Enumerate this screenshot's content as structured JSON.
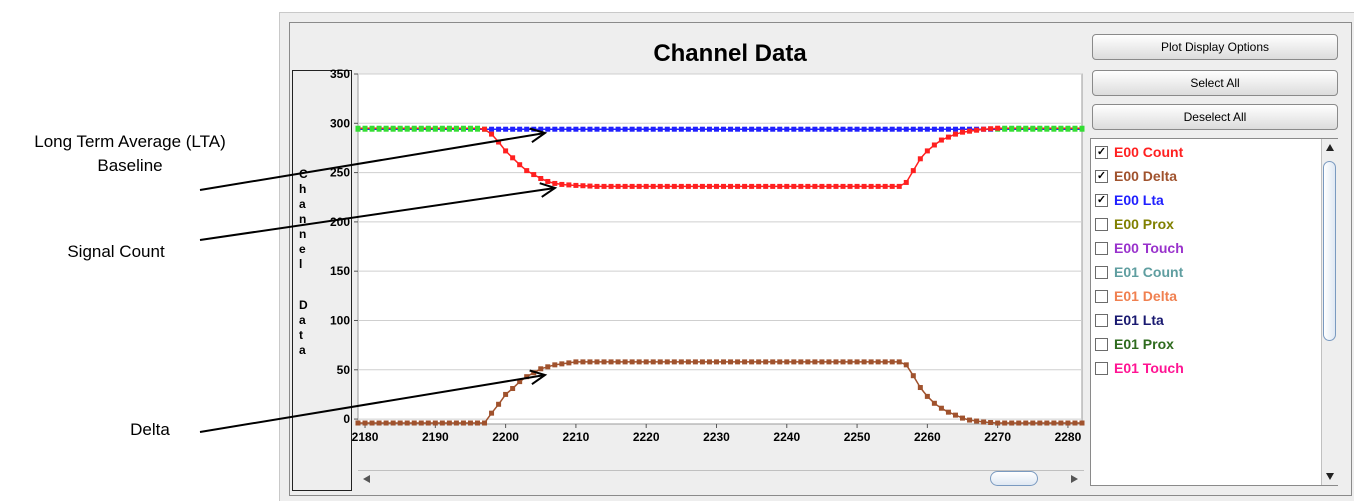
{
  "annotations": {
    "lta_line1": "Long Term Average (LTA)",
    "lta_line2": "Baseline",
    "signal": "Signal Count",
    "delta": "Delta"
  },
  "panel": {
    "title": "Channel Data",
    "ylabel": "Channel Data"
  },
  "buttons": {
    "plot_options": "Plot Display Options",
    "select_all": "Select All",
    "deselect_all": "Deselect All"
  },
  "legend": [
    {
      "label": "E00 Count",
      "checked": true,
      "color": "#ff2020"
    },
    {
      "label": "E00 Delta",
      "checked": true,
      "color": "#a0522d"
    },
    {
      "label": "E00 Lta",
      "checked": true,
      "color": "#2020ff"
    },
    {
      "label": "E00 Prox",
      "checked": false,
      "color": "#808000"
    },
    {
      "label": "E00 Touch",
      "checked": false,
      "color": "#9932cc"
    },
    {
      "label": "E01 Count",
      "checked": false,
      "color": "#5f9ea0"
    },
    {
      "label": "E01 Delta",
      "checked": false,
      "color": "#f08050"
    },
    {
      "label": "E01 Lta",
      "checked": false,
      "color": "#191970"
    },
    {
      "label": "E01 Prox",
      "checked": false,
      "color": "#2e6b1e"
    },
    {
      "label": "E01 Touch",
      "checked": false,
      "color": "#ff1493"
    }
  ],
  "chart_data": {
    "type": "line",
    "title": "Channel Data",
    "xlabel": "",
    "ylabel": "Channel Data",
    "xlim": [
      2179,
      2282
    ],
    "ylim": [
      -5,
      350
    ],
    "xticks": [
      2180,
      2190,
      2200,
      2210,
      2220,
      2230,
      2240,
      2250,
      2260,
      2270,
      2280
    ],
    "yticks": [
      0,
      50,
      100,
      150,
      200,
      250,
      300,
      350
    ],
    "grid": true,
    "legend_position": "right panel",
    "series": [
      {
        "name": "E00 Count",
        "color": "#ff2020",
        "x": [
          2179,
          2196,
          2197,
          2198,
          2199,
          2200,
          2201,
          2202,
          2203,
          2204,
          2205,
          2206,
          2207,
          2208,
          2210,
          2213,
          2220,
          2240,
          2250,
          2256,
          2257,
          2258,
          2259,
          2260,
          2261,
          2262,
          2263,
          2264,
          2265,
          2266,
          2267,
          2268,
          2270,
          2282
        ],
        "y": [
          295,
          295,
          294,
          289,
          281,
          272,
          265,
          258,
          252,
          248,
          244,
          241,
          239,
          238,
          237,
          236,
          236,
          236,
          236,
          236,
          240,
          252,
          264,
          272,
          278,
          283,
          286,
          289,
          291,
          292,
          293,
          294,
          295,
          295
        ]
      },
      {
        "name": "E00 Delta",
        "color": "#a0522d",
        "x": [
          2179,
          2197,
          2198,
          2199,
          2200,
          2201,
          2202,
          2203,
          2204,
          2205,
          2206,
          2207,
          2208,
          2210,
          2213,
          2220,
          2240,
          2256,
          2257,
          2258,
          2259,
          2260,
          2261,
          2262,
          2263,
          2264,
          2265,
          2266,
          2267,
          2268,
          2270,
          2282
        ],
        "y": [
          -4,
          -4,
          6,
          15,
          25,
          31,
          38,
          43,
          47,
          51,
          53,
          55,
          56,
          58,
          58,
          58,
          58,
          58,
          55,
          44,
          32,
          23,
          16,
          11,
          7,
          4,
          1,
          -1,
          -2,
          -3,
          -4,
          -4
        ]
      },
      {
        "name": "E00 Lta",
        "color": "#2020ff",
        "x": [
          2179,
          2282
        ],
        "y": [
          294,
          294
        ]
      }
    ]
  }
}
